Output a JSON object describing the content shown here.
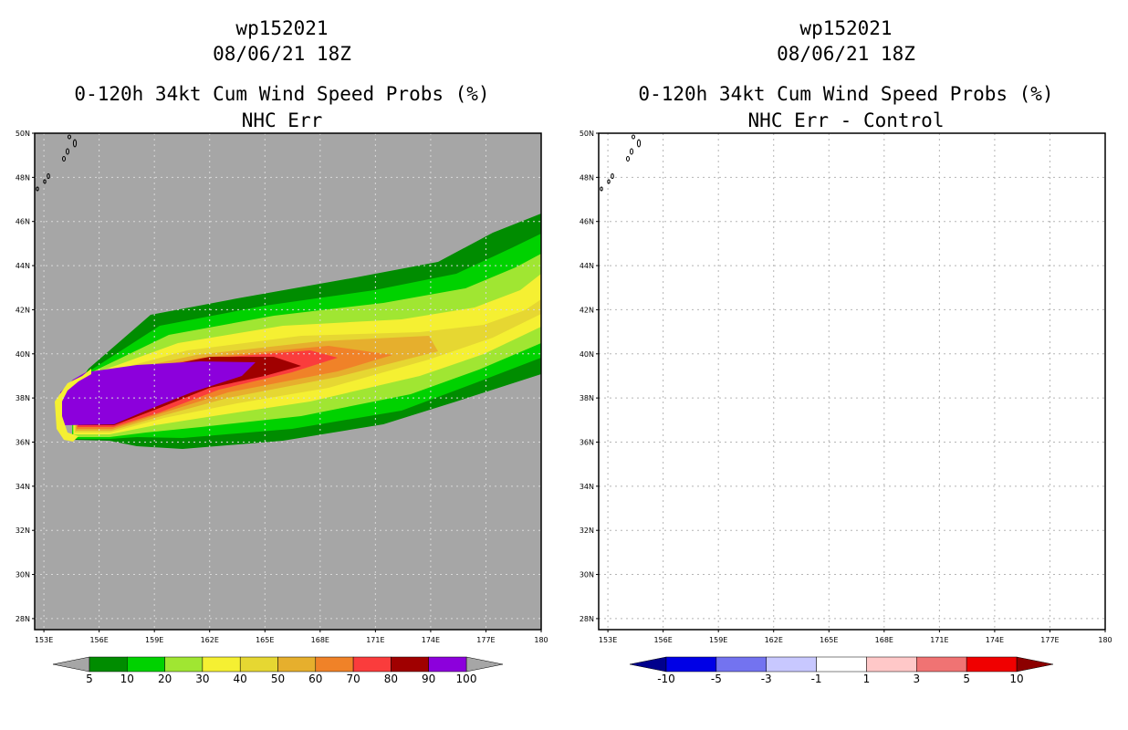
{
  "panels": [
    {
      "storm_id": "wp152021",
      "datetime": "08/06/21 18Z",
      "product": "0-120h 34kt Cum Wind Speed Probs (%)",
      "subtitle": "NHC Err",
      "lat_labels": [
        "50N",
        "48N",
        "46N",
        "44N",
        "42N",
        "40N",
        "38N",
        "36N",
        "34N",
        "32N",
        "30N",
        "28N"
      ],
      "lon_labels": [
        "153E",
        "156E",
        "159E",
        "162E",
        "165E",
        "168E",
        "171E",
        "174E",
        "177E",
        "180"
      ],
      "colorbar": {
        "labels": [
          "5",
          "10",
          "20",
          "30",
          "40",
          "50",
          "60",
          "70",
          "80",
          "90",
          "100"
        ],
        "colors": [
          "#008c00",
          "#00d200",
          "#a0e632",
          "#f5f032",
          "#e6d732",
          "#e6af2d",
          "#f08228",
          "#fa3c3c",
          "#a00000",
          "#8c00dc"
        ],
        "under_color": "#a6a6a6",
        "over_color": "#a6a6a6"
      },
      "background_color": "#a6a6a6"
    },
    {
      "storm_id": "wp152021",
      "datetime": "08/06/21 18Z",
      "product": "0-120h 34kt Cum Wind Speed Probs (%)",
      "subtitle": "NHC Err - Control",
      "lat_labels": [
        "50N",
        "48N",
        "46N",
        "44N",
        "42N",
        "40N",
        "38N",
        "36N",
        "34N",
        "32N",
        "30N",
        "28N"
      ],
      "lon_labels": [
        "153E",
        "156E",
        "159E",
        "162E",
        "165E",
        "168E",
        "171E",
        "174E",
        "177E",
        "180"
      ],
      "colorbar": {
        "labels": [
          "-10",
          "-5",
          "-3",
          "-1",
          "1",
          "3",
          "5",
          "10"
        ],
        "colors": [
          "#0000e6",
          "#7373f0",
          "#c8c8ff",
          "#ffffff",
          "#ffc8c8",
          "#f07373",
          "#f00000"
        ],
        "under_color": "#00008c",
        "over_color": "#8c0000"
      },
      "background_color": "#ffffff"
    }
  ]
}
